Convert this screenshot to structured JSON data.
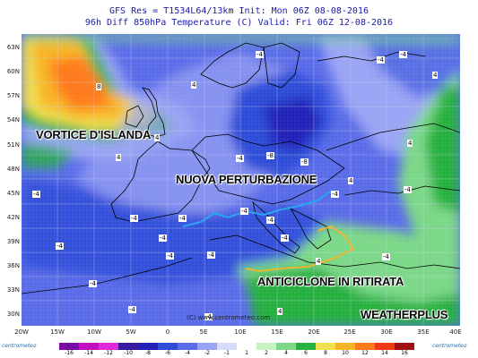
{
  "header": {
    "line1": "GFS Res = T1534L64/13km  Init: Mon 06Z 08-08-2016",
    "line2": "96h Diff 850hPa Temperature (C)  Valid: Fri 06Z 12-08-2016"
  },
  "axes": {
    "lat_labels": [
      "63N",
      "60N",
      "57N",
      "54N",
      "51N",
      "48N",
      "45N",
      "42N",
      "39N",
      "36N",
      "33N",
      "30N"
    ],
    "lon_labels": [
      "20W",
      "15W",
      "10W",
      "5W",
      "0",
      "5E",
      "10E",
      "15E",
      "20E",
      "25E",
      "30E",
      "35E",
      "40E"
    ]
  },
  "overlays": {
    "vortex": "VORTICE D'ISLANDA",
    "perturbation": "NUOVA PERTURBAZIONE",
    "anticyclone": "ANTICICLONE IN RITIRATA",
    "weatherplus": "WEATHERPLUS"
  },
  "copyright": "(C) www.centrometeo.com",
  "isotherm_labels": [
    "8",
    "4",
    "-4",
    "-4",
    "4",
    "-4",
    "-8",
    "-8",
    "-4",
    "4",
    "-4",
    "-4",
    "-4",
    "-4",
    "-4",
    "-4",
    "-4",
    "4",
    "-4",
    "-4",
    "4",
    "4",
    "4",
    "-4",
    "-4",
    "-4",
    "-4",
    "-4",
    "4",
    "-4",
    "-4"
  ],
  "legend": {
    "values": [
      "-16",
      "-14",
      "-12",
      "-10",
      "-8",
      "-6",
      "-4",
      "-2",
      "-1",
      "1",
      "2",
      "4",
      "6",
      "8",
      "10",
      "12",
      "14",
      "16"
    ],
    "colors": [
      "#7a0aa8",
      "#c010c0",
      "#e02ad8",
      "#3b1aa0",
      "#2320b8",
      "#2e4ed8",
      "#5a6ce8",
      "#9aa4f4",
      "#d8dcfc",
      "#ffffff",
      "#c8f0c0",
      "#7cd888",
      "#28b040",
      "#f0e050",
      "#f8b428",
      "#ff7a1a",
      "#f03a14",
      "#a01010"
    ],
    "logo_left": "centrometeo",
    "logo_right": "centrometeo"
  }
}
